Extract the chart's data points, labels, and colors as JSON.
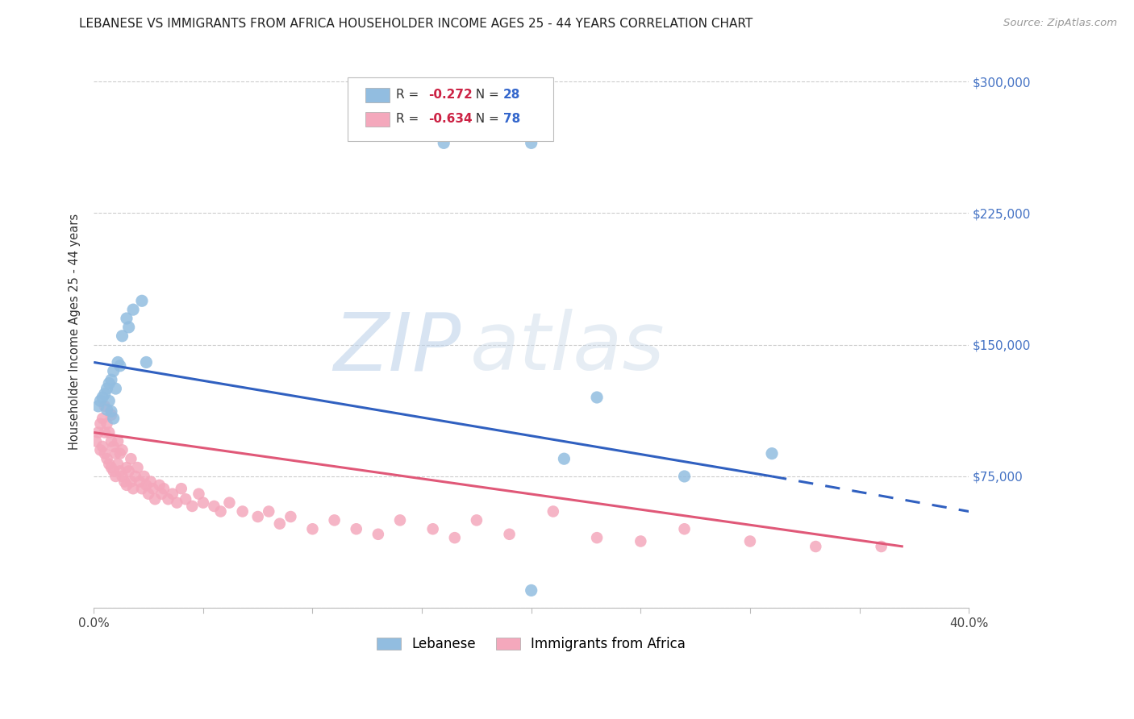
{
  "title": "LEBANESE VS IMMIGRANTS FROM AFRICA HOUSEHOLDER INCOME AGES 25 - 44 YEARS CORRELATION CHART",
  "source": "Source: ZipAtlas.com",
  "ylabel": "Householder Income Ages 25 - 44 years",
  "watermark_zip": "ZIP",
  "watermark_atlas": "atlas",
  "blue_R": -0.272,
  "blue_N": 28,
  "pink_R": -0.634,
  "pink_N": 78,
  "xlim": [
    0.0,
    0.4
  ],
  "ylim": [
    0,
    315000
  ],
  "yticks": [
    0,
    75000,
    150000,
    225000,
    300000
  ],
  "ytick_labels": [
    "",
    "$75,000",
    "$150,000",
    "$225,000",
    "$300,000"
  ],
  "blue_color": "#92bde0",
  "pink_color": "#f4a8bc",
  "blue_line_color": "#3060c0",
  "pink_line_color": "#e05878",
  "grid_color": "#cccccc",
  "background": "#ffffff",
  "blue_line_x0": 0.0,
  "blue_line_y0": 140000,
  "blue_line_x1": 0.31,
  "blue_line_y1": 75000,
  "blue_line_dash_x1": 0.4,
  "blue_line_dash_y1": 55000,
  "pink_line_x0": 0.0,
  "pink_line_y0": 100000,
  "pink_line_x1": 0.37,
  "pink_line_y1": 35000,
  "blue_x": [
    0.002,
    0.003,
    0.004,
    0.005,
    0.006,
    0.006,
    0.007,
    0.007,
    0.008,
    0.008,
    0.009,
    0.009,
    0.01,
    0.011,
    0.012,
    0.013,
    0.015,
    0.016,
    0.018,
    0.022,
    0.024,
    0.16,
    0.2,
    0.215,
    0.23,
    0.27,
    0.31,
    0.2
  ],
  "blue_y": [
    115000,
    118000,
    120000,
    122000,
    113000,
    125000,
    118000,
    128000,
    112000,
    130000,
    108000,
    135000,
    125000,
    140000,
    138000,
    155000,
    165000,
    160000,
    170000,
    175000,
    140000,
    265000,
    265000,
    85000,
    120000,
    75000,
    88000,
    10000
  ],
  "pink_x": [
    0.001,
    0.002,
    0.003,
    0.003,
    0.004,
    0.004,
    0.005,
    0.005,
    0.005,
    0.006,
    0.006,
    0.007,
    0.007,
    0.008,
    0.008,
    0.008,
    0.009,
    0.009,
    0.01,
    0.01,
    0.011,
    0.011,
    0.012,
    0.012,
    0.013,
    0.013,
    0.014,
    0.015,
    0.015,
    0.016,
    0.017,
    0.017,
    0.018,
    0.019,
    0.02,
    0.021,
    0.022,
    0.023,
    0.024,
    0.025,
    0.026,
    0.027,
    0.028,
    0.03,
    0.031,
    0.032,
    0.034,
    0.036,
    0.038,
    0.04,
    0.042,
    0.045,
    0.048,
    0.05,
    0.055,
    0.058,
    0.062,
    0.068,
    0.075,
    0.08,
    0.085,
    0.09,
    0.1,
    0.11,
    0.12,
    0.13,
    0.14,
    0.155,
    0.165,
    0.175,
    0.19,
    0.21,
    0.23,
    0.25,
    0.27,
    0.3,
    0.33,
    0.36
  ],
  "pink_y": [
    95000,
    100000,
    105000,
    90000,
    92000,
    108000,
    88000,
    100000,
    115000,
    85000,
    105000,
    82000,
    100000,
    80000,
    95000,
    110000,
    78000,
    92000,
    88000,
    75000,
    82000,
    95000,
    78000,
    88000,
    75000,
    90000,
    72000,
    80000,
    70000,
    78000,
    72000,
    85000,
    68000,
    75000,
    80000,
    72000,
    68000,
    75000,
    70000,
    65000,
    72000,
    68000,
    62000,
    70000,
    65000,
    68000,
    62000,
    65000,
    60000,
    68000,
    62000,
    58000,
    65000,
    60000,
    58000,
    55000,
    60000,
    55000,
    52000,
    55000,
    48000,
    52000,
    45000,
    50000,
    45000,
    42000,
    50000,
    45000,
    40000,
    50000,
    42000,
    55000,
    40000,
    38000,
    45000,
    38000,
    35000,
    35000
  ]
}
